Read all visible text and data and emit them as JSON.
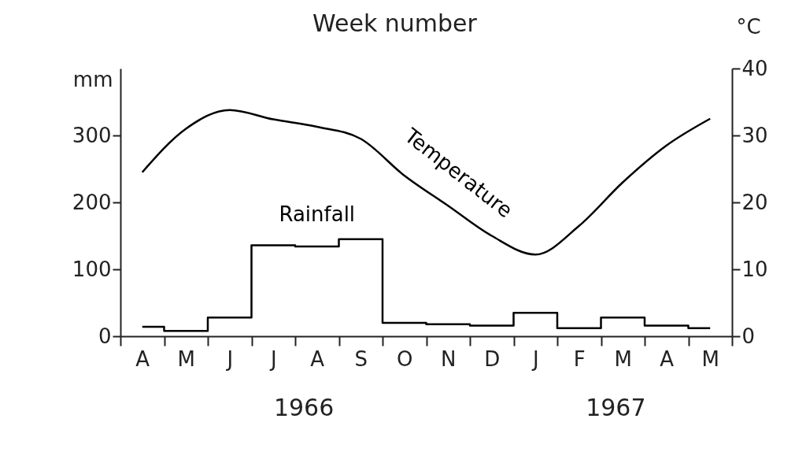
{
  "chart_data": {
    "type": "step",
    "x2label": "Week number",
    "ylabel": "mm",
    "y2label": "°C",
    "categories": [
      "A",
      "M",
      "J",
      "J",
      "A",
      "S",
      "O",
      "N",
      "D",
      "J",
      "F",
      "M",
      "A",
      "M"
    ],
    "ylim": [
      0,
      400
    ],
    "yticks": [
      0,
      100,
      200,
      300
    ],
    "y2lim": [
      0,
      40
    ],
    "y2ticks": [
      0,
      10,
      20,
      30,
      40
    ],
    "series": [
      {
        "name": "Rainfall",
        "color": "#000000",
        "values": [
          14,
          8,
          28,
          136,
          134,
          145,
          20,
          18,
          16,
          35,
          12,
          28,
          16,
          12
        ]
      },
      {
        "name": "Temperature",
        "type": "line",
        "axis": "y2",
        "color": "#000000",
        "values": [
          24.5,
          31,
          33.8,
          32.4,
          31.3,
          29.5,
          24,
          19.5,
          15,
          12.2,
          16.5,
          23,
          28.5,
          32.5
        ]
      }
    ],
    "annotations": [
      "1966",
      "1967"
    ]
  }
}
